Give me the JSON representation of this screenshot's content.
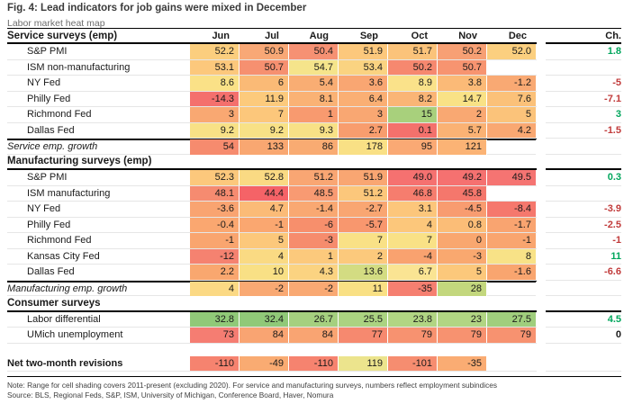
{
  "title": "Fig. 4: Lead indicators for job gains were mixed in December",
  "subtitle": "Labor market heat map",
  "note": "Note: Range for cell shading covers 2011-present (excluding 2020). For service and manufacturing surveys, numbers reflect employment subindices",
  "source": "Source: BLS, Regional Feds, S&P, ISM, University of Michigan, Conference Board, Haver, Nomura",
  "chart_data": {
    "type": "heatmap",
    "columns": [
      "Jun",
      "Jul",
      "Aug",
      "Sep",
      "Oct",
      "Nov",
      "Dec"
    ],
    "change_label": "Ch.",
    "change_colors": {
      "positive": "#00A65C",
      "negative": "#C13B3B",
      "neutral": "#1a1a1a"
    },
    "sections": [
      {
        "header": "Service surveys (emp)",
        "rows": [
          {
            "label": "S&P PMI",
            "style": "data",
            "values": [
              "52.2",
              "50.9",
              "50.4",
              "51.9",
              "51.7",
              "50.2",
              "52.0"
            ],
            "bg": [
              "#FBCE7E",
              "#F8A876",
              "#F69173",
              "#FCC87C",
              "#FBC37A",
              "#F7A074",
              "#FBCF7F"
            ],
            "ch": "1.8",
            "ch_type": "positive"
          },
          {
            "label": "ISM non-manufacturing",
            "style": "data",
            "values": [
              "53.1",
              "50.7",
              "54.7",
              "53.4",
              "50.2",
              "50.7",
              ""
            ],
            "bg": [
              "#FCC87C",
              "#F69070",
              "#F5E48B",
              "#FAD381",
              "#F6886F",
              "#F79470",
              ""
            ],
            "ch": "",
            "ch_type": ""
          },
          {
            "label": "NY Fed",
            "style": "data",
            "values": [
              "8.6",
              "6",
              "5.4",
              "3.6",
              "8.9",
              "3.8",
              "-1.2"
            ],
            "bg": [
              "#FAE187",
              "#FABA76",
              "#F9AD73",
              "#F9A672",
              "#FAE28A",
              "#FBBA77",
              "#F9A973"
            ],
            "ch": "-5",
            "ch_type": "negative"
          },
          {
            "label": "Philly Fed",
            "style": "data",
            "values": [
              "-14.3",
              "11.9",
              "8.1",
              "6.4",
              "8.2",
              "14.7",
              "7.6"
            ],
            "bg": [
              "#F4706D",
              "#FCCA7C",
              "#FAB275",
              "#FAAF74",
              "#FAB576",
              "#F9E286",
              "#FBC179"
            ],
            "ch": "-7.1",
            "ch_type": "negative"
          },
          {
            "label": "Richmond Fed",
            "style": "data",
            "values": [
              "3",
              "7",
              "1",
              "3",
              "15",
              "2",
              "5"
            ],
            "bg": [
              "#F9A872",
              "#FCC77B",
              "#F89A6F",
              "#F9A772",
              "#A8D07C",
              "#F9A872",
              "#FBC37A"
            ],
            "ch": "3",
            "ch_type": "positive"
          },
          {
            "label": "Dallas Fed",
            "style": "data",
            "values": [
              "9.2",
              "9.2",
              "9.3",
              "2.7",
              "0.1",
              "5.7",
              "4.2"
            ],
            "bg": [
              "#F8E186",
              "#F8E186",
              "#F8E186",
              "#F89D6E",
              "#F4716C",
              "#FAB274",
              "#F9A872"
            ],
            "ch": "-1.5",
            "ch_type": "negative"
          },
          {
            "label": "Service emp. growth",
            "style": "summary",
            "values": [
              "54",
              "133",
              "86",
              "178",
              "95",
              "121",
              ""
            ],
            "bg": [
              "#F68B6E",
              "#F9A771",
              "#F9AB72",
              "#F9E085",
              "#FAA974",
              "#FBB375",
              ""
            ],
            "ch": "",
            "ch_type": ""
          }
        ]
      },
      {
        "header": "Manufacturing surveys (emp)",
        "rows": [
          {
            "label": "S&P PMI",
            "style": "data",
            "values": [
              "52.3",
              "52.8",
              "51.2",
              "51.9",
              "49.0",
              "49.2",
              "49.5"
            ],
            "bg": [
              "#FCC87C",
              "#FADA83",
              "#F9A673",
              "#F9A672",
              "#F57170",
              "#F57170",
              "#F57472"
            ],
            "ch": "0.3",
            "ch_type": "positive"
          },
          {
            "label": "ISM manufacturing",
            "style": "data",
            "values": [
              "48.1",
              "44.4",
              "48.5",
              "51.2",
              "46.8",
              "45.8",
              ""
            ],
            "bg": [
              "#F68B70",
              "#F56367",
              "#F89A72",
              "#FCC77B",
              "#F67D6E",
              "#F5776C",
              ""
            ],
            "ch": "",
            "ch_type": ""
          },
          {
            "label": "NY Fed",
            "style": "data",
            "values": [
              "-3.6",
              "4.7",
              "-1.4",
              "-2.7",
              "3.1",
              "-4.5",
              "-8.4"
            ],
            "bg": [
              "#F9A471",
              "#FBBB77",
              "#F9A872",
              "#F9A672",
              "#FCC67B",
              "#F89C70",
              "#F5786D"
            ],
            "ch": "-3.9",
            "ch_type": "negative"
          },
          {
            "label": "Philly Fed",
            "style": "data",
            "values": [
              "-0.4",
              "-1",
              "-6",
              "-5.7",
              "4",
              "0.8",
              "-1.7"
            ],
            "bg": [
              "#FAA770",
              "#FAA770",
              "#F78F6C",
              "#F8976E",
              "#FCC77B",
              "#FBBD77",
              "#F9A470"
            ],
            "ch": "-2.5",
            "ch_type": "negative"
          },
          {
            "label": "Richmond Fed",
            "style": "data",
            "values": [
              "-1",
              "5",
              "-3",
              "7",
              "7",
              "0",
              "-1"
            ],
            "bg": [
              "#F9A56F",
              "#FCC87B",
              "#F68C6D",
              "#F9E186",
              "#F9E186",
              "#F9A76F",
              "#F9A56F"
            ],
            "ch": "-1",
            "ch_type": "negative"
          },
          {
            "label": "Kansas City Fed",
            "style": "data",
            "values": [
              "-12",
              "4",
              "1",
              "2",
              "-4",
              "-3",
              "8"
            ],
            "bg": [
              "#F58270",
              "#FADA83",
              "#FCC97C",
              "#FCC97C",
              "#F9A26F",
              "#F9A86F",
              "#F8E287"
            ],
            "ch": "11",
            "ch_type": "positive"
          },
          {
            "label": "Dallas Fed",
            "style": "data",
            "values": [
              "2.2",
              "10",
              "4.3",
              "13.6",
              "6.7",
              "5",
              "-1.6"
            ],
            "bg": [
              "#F9A76F",
              "#F9E085",
              "#FBD381",
              "#D3DC82",
              "#FAE493",
              "#FCC87B",
              "#F9A56F"
            ],
            "ch": "-6.6",
            "ch_type": "negative"
          },
          {
            "label": "Manufacturing emp. growth",
            "style": "summary",
            "values": [
              "4",
              "-2",
              "-2",
              "11",
              "-35",
              "28",
              ""
            ],
            "bg": [
              "#FBD984",
              "#F9A973",
              "#F9A973",
              "#F9E084",
              "#F57F70",
              "#C3D77D",
              ""
            ],
            "ch": "",
            "ch_type": ""
          }
        ]
      },
      {
        "header": "Consumer surveys",
        "rows": [
          {
            "label": "Labor differential",
            "style": "data",
            "values": [
              "32.8",
              "32.4",
              "26.7",
              "25.5",
              "23.8",
              "23",
              "27.5"
            ],
            "bg": [
              "#90C978",
              "#90C978",
              "#A5D07F",
              "#ABD381",
              "#B1D583",
              "#B1D583",
              "#A0CE7D"
            ],
            "ch": "4.5",
            "ch_type": "positive"
          },
          {
            "label": "UMich unemployment",
            "style": "data",
            "values": [
              "73",
              "84",
              "84",
              "77",
              "79",
              "79",
              "79"
            ],
            "bg": [
              "#F57D72",
              "#F9A472",
              "#F9A472",
              "#F6896F",
              "#F79270",
              "#F79270",
              "#F79270"
            ],
            "ch": "0",
            "ch_type": "neutral"
          }
        ]
      }
    ],
    "footer_row": {
      "label": "Net two-month revisions",
      "style": "net",
      "values": [
        "-110",
        "-49",
        "-110",
        "119",
        "-101",
        "-35",
        ""
      ],
      "bg": [
        "#F6836F",
        "#F9AB72",
        "#F6836F",
        "#ECE48D",
        "#F68D70",
        "#FAAC73",
        ""
      ],
      "ch": "",
      "ch_type": ""
    }
  }
}
